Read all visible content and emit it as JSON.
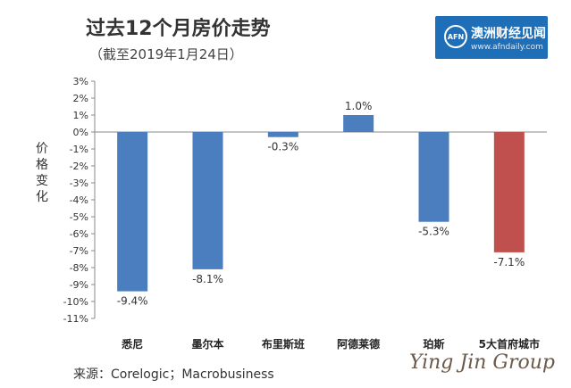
{
  "header": {
    "title": "过去12个月房价走势",
    "subtitle": "（截至2019年1月24日）"
  },
  "logo": {
    "badge": "AFN",
    "name": "澳洲财经见闻",
    "site": "www.afndaily.com"
  },
  "footer": {
    "source": "来源：Corelogic；Macrobusiness",
    "watermark": "Ying Jin Group"
  },
  "chart_data": {
    "type": "bar",
    "ylabel": "价格变化",
    "categories": [
      "悉尼",
      "墨尔本",
      "布里斯班",
      "阿德莱德",
      "珀斯",
      "5大首府城市"
    ],
    "values": [
      -9.4,
      -8.1,
      -0.3,
      1.0,
      -5.3,
      -7.1
    ],
    "value_labels": [
      "-9.4%",
      "-8.1%",
      "-0.3%",
      "1.0%",
      "-5.3%",
      "-7.1%"
    ],
    "colors": [
      "#4a7ebf",
      "#4a7ebf",
      "#4a7ebf",
      "#4a7ebf",
      "#4a7ebf",
      "#c0504d"
    ],
    "ylim": [
      -11,
      3
    ],
    "yticks": [
      3,
      2,
      1,
      0,
      -1,
      -2,
      -3,
      -4,
      -5,
      -6,
      -7,
      -8,
      -9,
      -10,
      -11
    ],
    "ytick_labels": [
      "3%",
      "2%",
      "1%",
      "0%",
      "-1%",
      "-2%",
      "-3%",
      "-4%",
      "-5%",
      "-6%",
      "-7%",
      "-8%",
      "-9%",
      "-10%",
      "-11%"
    ],
    "grid": false
  }
}
